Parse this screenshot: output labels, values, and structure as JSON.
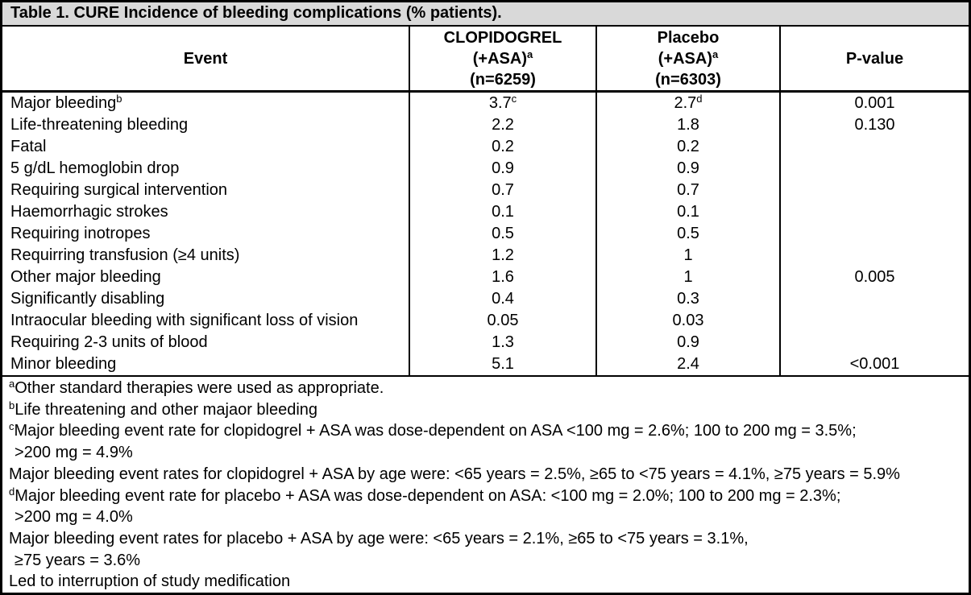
{
  "title": "Table 1. CURE Incidence of bleeding complications (% patients).",
  "header": {
    "event": "Event",
    "clopidogrel": {
      "line1": "CLOPIDOGREL",
      "line2": "(+ASA)",
      "line2_sup": "a",
      "line3": "(n=6259)"
    },
    "placebo": {
      "line1": "Placebo",
      "line2": "(+ASA)",
      "line2_sup": "a",
      "line3": "(n=6303)"
    },
    "pvalue": "P-value"
  },
  "rows": [
    {
      "event": "Major bleeding",
      "event_sup": "b",
      "clopidogrel": "3.7",
      "clopidogrel_sup": "c",
      "placebo": "2.7",
      "placebo_sup": "d",
      "pvalue": "0.001"
    },
    {
      "event": "Life-threatening bleeding",
      "event_sup": "",
      "clopidogrel": "2.2",
      "clopidogrel_sup": "",
      "placebo": "1.8",
      "placebo_sup": "",
      "pvalue": "0.130"
    },
    {
      "event": "Fatal",
      "event_sup": "",
      "clopidogrel": "0.2",
      "clopidogrel_sup": "",
      "placebo": "0.2",
      "placebo_sup": "",
      "pvalue": ""
    },
    {
      "event": "5 g/dL hemoglobin drop",
      "event_sup": "",
      "clopidogrel": "0.9",
      "clopidogrel_sup": "",
      "placebo": "0.9",
      "placebo_sup": "",
      "pvalue": ""
    },
    {
      "event": "Requiring surgical intervention",
      "event_sup": "",
      "clopidogrel": "0.7",
      "clopidogrel_sup": "",
      "placebo": "0.7",
      "placebo_sup": "",
      "pvalue": ""
    },
    {
      "event": "Haemorrhagic strokes",
      "event_sup": "",
      "clopidogrel": "0.1",
      "clopidogrel_sup": "",
      "placebo": "0.1",
      "placebo_sup": "",
      "pvalue": ""
    },
    {
      "event": "Requiring inotropes",
      "event_sup": "",
      "clopidogrel": "0.5",
      "clopidogrel_sup": "",
      "placebo": "0.5",
      "placebo_sup": "",
      "pvalue": ""
    },
    {
      "event": "Requirring transfusion (≥4 units)",
      "event_sup": "",
      "clopidogrel": "1.2",
      "clopidogrel_sup": "",
      "placebo": "1",
      "placebo_sup": "",
      "pvalue": ""
    },
    {
      "event": "Other major bleeding",
      "event_sup": "",
      "clopidogrel": "1.6",
      "clopidogrel_sup": "",
      "placebo": "1",
      "placebo_sup": "",
      "pvalue": "0.005"
    },
    {
      "event": "Significantly disabling",
      "event_sup": "",
      "clopidogrel": "0.4",
      "clopidogrel_sup": "",
      "placebo": "0.3",
      "placebo_sup": "",
      "pvalue": ""
    },
    {
      "event": "Intraocular bleeding with significant loss of vision",
      "event_sup": "",
      "clopidogrel": "0.05",
      "clopidogrel_sup": "",
      "placebo": "0.03",
      "placebo_sup": "",
      "pvalue": ""
    },
    {
      "event": "Requiring 2-3 units of blood",
      "event_sup": "",
      "clopidogrel": "1.3",
      "clopidogrel_sup": "",
      "placebo": "0.9",
      "placebo_sup": "",
      "pvalue": ""
    },
    {
      "event": "Minor bleeding",
      "event_sup": "",
      "clopidogrel": "5.1",
      "clopidogrel_sup": "",
      "placebo": "2.4",
      "placebo_sup": "",
      "pvalue": "<0.001"
    }
  ],
  "footnotes": [
    {
      "sup": "a",
      "text": "Other standard therapies were used as appropriate.",
      "indent": false
    },
    {
      "sup": "b",
      "text": "Life threatening and other majaor bleeding",
      "indent": false
    },
    {
      "sup": "c",
      "text": "Major bleeding event rate for clopidogrel + ASA was dose-dependent on ASA <100 mg = 2.6%; 100 to 200 mg = 3.5%;",
      "indent": false
    },
    {
      "sup": "",
      "text": ">200 mg = 4.9%",
      "indent": true
    },
    {
      "sup": "",
      "text": "Major bleeding event rates for clopidogrel + ASA by age were: <65 years = 2.5%, ≥65 to <75 years = 4.1%, ≥75 years = 5.9%",
      "indent": false
    },
    {
      "sup": "d",
      "text": "Major bleeding event rate for placebo + ASA was dose-dependent on ASA: <100 mg = 2.0%; 100 to 200 mg = 2.3%;",
      "indent": false
    },
    {
      "sup": "",
      "text": ">200 mg = 4.0%",
      "indent": true
    },
    {
      "sup": "",
      "text": "Major bleeding event rates for placebo + ASA by age were: <65 years = 2.1%, ≥65 to <75 years = 3.1%,",
      "indent": false
    },
    {
      "sup": "",
      "text": "≥75 years = 3.6%",
      "indent": true
    },
    {
      "sup": "",
      "text": "Led to interruption of study medification",
      "indent": false
    }
  ],
  "colors": {
    "title_background": "#d9d9d9",
    "border": "#000000",
    "text": "#000000",
    "background": "#ffffff"
  }
}
